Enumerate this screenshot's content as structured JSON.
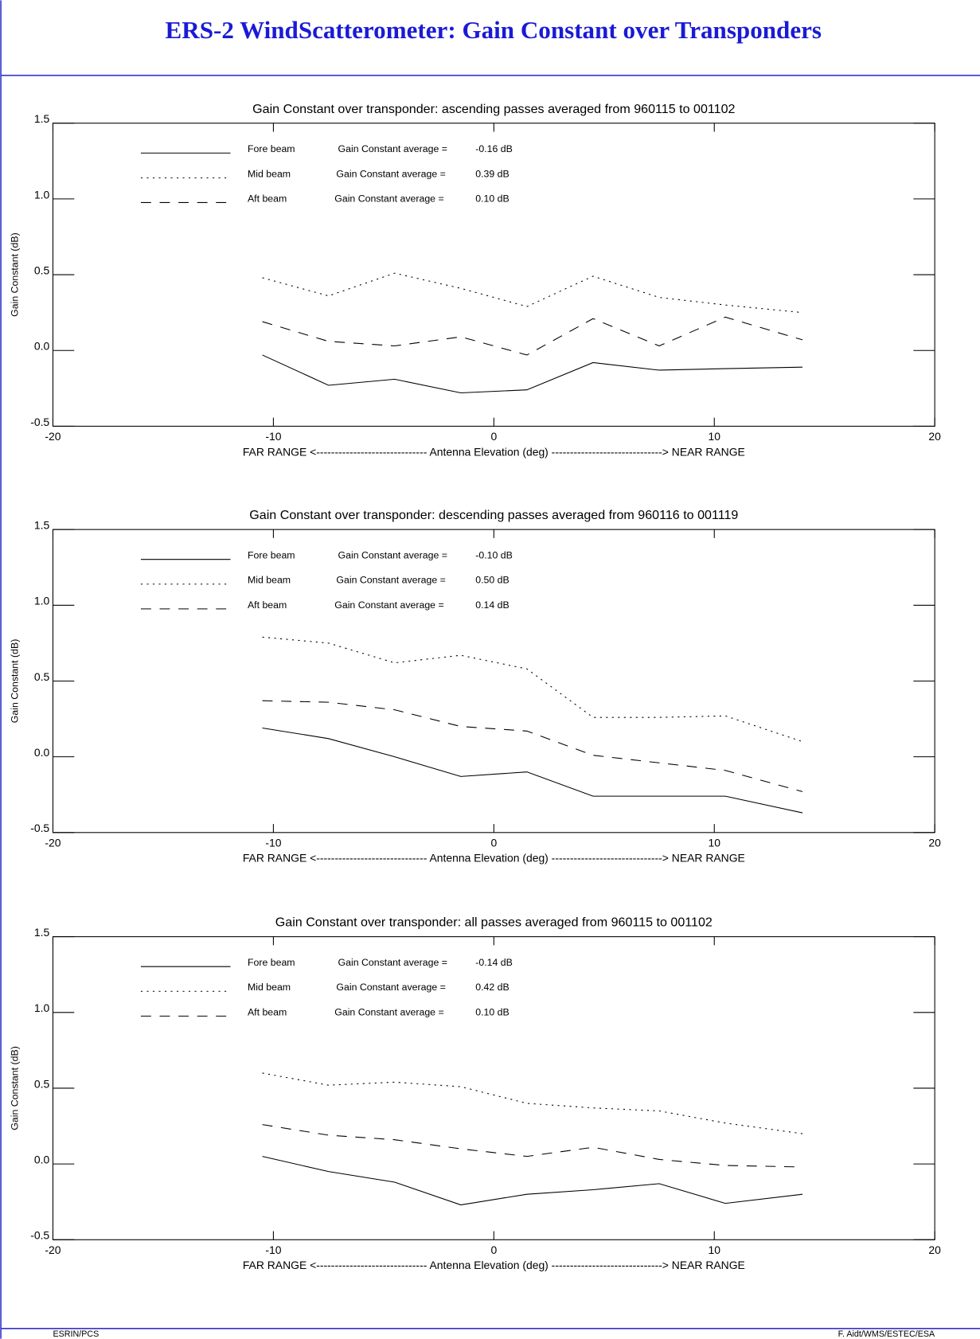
{
  "header": {
    "title": "ERS-2 WindScatterometer: Gain Constant over Transponders"
  },
  "footer": {
    "left": "ESRIN/PCS",
    "right": "F. Aidt/WMS/ESTEC/ESA"
  },
  "chart_data": [
    {
      "type": "line",
      "title": "Gain Constant over transponder: ascending passes averaged from 960115 to 001102",
      "x_label": "FAR RANGE <------------------------------ Antenna Elevation (deg) ------------------------------> NEAR RANGE",
      "y_label": "Gain Constant (dB)",
      "x": [
        -10.5,
        -7.5,
        -4.5,
        -1.5,
        1.5,
        4.5,
        7.5,
        10.5,
        14
      ],
      "series": [
        {
          "name": "Fore beam",
          "color": "#000000",
          "dash": "solid",
          "average_label": "Gain Constant average =",
          "average": "-0.16 dB",
          "values": [
            -0.03,
            -0.23,
            -0.19,
            -0.28,
            -0.26,
            -0.08,
            -0.13,
            -0.12,
            -0.11
          ]
        },
        {
          "name": "Mid beam",
          "color": "#000000",
          "dash": "dotted",
          "average_label": "Gain Constant average =",
          "average": "0.39 dB",
          "values": [
            0.48,
            0.36,
            0.51,
            0.41,
            0.29,
            0.49,
            0.35,
            0.3,
            0.25
          ]
        },
        {
          "name": "Aft beam",
          "color": "#000000",
          "dash": "dashed",
          "average_label": "Gain Constant average =",
          "average": "0.10 dB",
          "values": [
            0.19,
            0.06,
            0.03,
            0.09,
            -0.03,
            0.21,
            0.03,
            0.22,
            0.07
          ]
        }
      ],
      "xlim": [
        -20,
        20
      ],
      "xticks": [
        -20,
        -10,
        0,
        10,
        20
      ],
      "ylim": [
        -0.5,
        1.5
      ],
      "yticks": [
        -0.5,
        {
          "value": 0,
          "label": "0.0"
        },
        0.5,
        {
          "value": 1,
          "label": "1.0"
        },
        1.5
      ]
    },
    {
      "type": "line",
      "title": "Gain Constant over transponder: descending passes averaged from 960116 to 001119",
      "x_label": "FAR RANGE <------------------------------ Antenna Elevation (deg) ------------------------------> NEAR RANGE",
      "y_label": "Gain Constant (dB)",
      "x": [
        -10.5,
        -7.5,
        -4.5,
        -1.5,
        1.5,
        4.5,
        7.5,
        10.5,
        14
      ],
      "series": [
        {
          "name": "Fore beam",
          "color": "#000000",
          "dash": "solid",
          "average_label": "Gain Constant average =",
          "average": "-0.10 dB",
          "values": [
            0.19,
            0.12,
            0.0,
            -0.13,
            -0.1,
            -0.26,
            -0.26,
            -0.26,
            -0.37
          ]
        },
        {
          "name": "Mid beam",
          "color": "#000000",
          "dash": "dotted",
          "average_label": "Gain Constant average =",
          "average": "0.50 dB",
          "values": [
            0.79,
            0.75,
            0.62,
            0.67,
            0.58,
            0.26,
            0.26,
            0.27,
            0.1
          ]
        },
        {
          "name": "Aft beam",
          "color": "#000000",
          "dash": "dashed",
          "average_label": "Gain Constant average =",
          "average": "0.14 dB",
          "values": [
            0.37,
            0.36,
            0.31,
            0.2,
            0.17,
            0.01,
            -0.04,
            -0.09,
            -0.23
          ]
        }
      ],
      "xlim": [
        -20,
        20
      ],
      "xticks": [
        -20,
        -10,
        0,
        10,
        20
      ],
      "ylim": [
        -0.5,
        1.5
      ],
      "yticks": [
        -0.5,
        {
          "value": 0,
          "label": "0.0"
        },
        0.5,
        {
          "value": 1,
          "label": "1.0"
        },
        1.5
      ]
    },
    {
      "type": "line",
      "title": "Gain Constant over transponder: all passes averaged from 960115 to 001102",
      "x_label": "FAR RANGE <------------------------------ Antenna Elevation (deg) ------------------------------> NEAR RANGE",
      "y_label": "Gain Constant (dB)",
      "x": [
        -10.5,
        -7.5,
        -4.5,
        -1.5,
        1.5,
        4.5,
        7.5,
        10.5,
        14
      ],
      "series": [
        {
          "name": "Fore beam",
          "color": "#000000",
          "dash": "solid",
          "average_label": "Gain Constant average =",
          "average": "-0.14 dB",
          "values": [
            0.05,
            -0.05,
            -0.12,
            -0.27,
            -0.2,
            -0.17,
            -0.13,
            -0.26,
            -0.2
          ]
        },
        {
          "name": "Mid beam",
          "color": "#000000",
          "dash": "dotted",
          "average_label": "Gain Constant average =",
          "average": "0.42 dB",
          "values": [
            0.6,
            0.52,
            0.54,
            0.51,
            0.4,
            0.37,
            0.35,
            0.27,
            0.2
          ]
        },
        {
          "name": "Aft beam",
          "color": "#000000",
          "dash": "dashed",
          "average_label": "Gain Constant average =",
          "average": "0.10 dB",
          "values": [
            0.26,
            0.19,
            0.16,
            0.1,
            0.05,
            0.11,
            0.03,
            -0.01,
            -0.02
          ]
        }
      ],
      "xlim": [
        -20,
        20
      ],
      "xticks": [
        -20,
        -10,
        0,
        10,
        20
      ],
      "ylim": [
        -0.5,
        1.5
      ],
      "yticks": [
        -0.5,
        {
          "value": 0,
          "label": "0.0"
        },
        0.5,
        {
          "value": 1,
          "label": "1.0"
        },
        1.5
      ]
    }
  ]
}
